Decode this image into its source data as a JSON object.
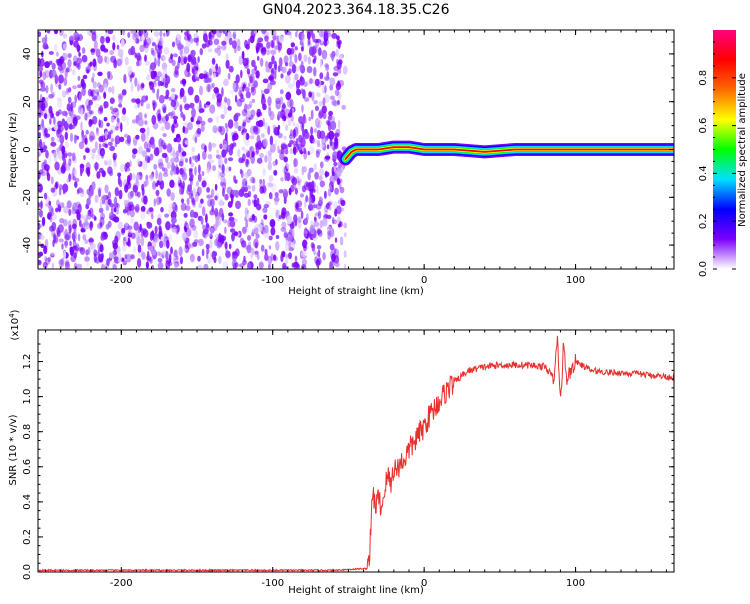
{
  "title": "GN04.2023.364.18.35.C26",
  "chart_data": [
    {
      "type": "heatmap",
      "title": "GN04.2023.364.18.35.C26",
      "xlabel": "Height of straight line (km)",
      "ylabel": "Frequency (Hz)",
      "xlim": [
        -255,
        165
      ],
      "ylim": [
        -50,
        50
      ],
      "xticks": [
        -200,
        -100,
        0,
        100
      ],
      "yticks": [
        -40,
        -20,
        0,
        20,
        40
      ],
      "noise_region_x": [
        -255,
        -52
      ],
      "signal_trace": {
        "x": [
          -52,
          -48,
          -45,
          -40,
          -30,
          -20,
          -10,
          0,
          20,
          40,
          60,
          80,
          100,
          120,
          140,
          165
        ],
        "y": [
          -4,
          -1,
          0,
          0,
          0,
          1,
          1,
          0,
          0,
          -1,
          0,
          0,
          0,
          0,
          0,
          0
        ]
      },
      "colorbar": {
        "label": "Normalized spectral amplitude",
        "range": [
          0.0,
          1.0
        ],
        "ticks": [
          "0.0",
          "0.2",
          "0.4",
          "0.6",
          "0.8"
        ],
        "colors": [
          "#ffffff",
          "#7a00ff",
          "#0000ff",
          "#00e0ff",
          "#00ff00",
          "#ffff00",
          "#ff6a00",
          "#ff0000",
          "#ff0080"
        ]
      }
    },
    {
      "type": "line",
      "xlabel": "Height of straight line (km)",
      "ylabel": "SNR (10 * v/v)",
      "scale_label": "(x10",
      "scale_exp": "4",
      "scale_close": ")",
      "xlim": [
        -255,
        165
      ],
      "ylim": [
        0.0,
        1.38
      ],
      "xticks": [
        -200,
        -100,
        0,
        100
      ],
      "yticks": [
        "0.0",
        "0.2",
        "0.4",
        "0.6",
        "0.8",
        "1.0",
        "1.2"
      ],
      "color": "#e8302e",
      "series": [
        {
          "x": [
            -255,
            -200,
            -150,
            -100,
            -60,
            -38,
            -36,
            -34,
            -32,
            -30,
            -28,
            -26,
            -24,
            -22,
            -20,
            -18,
            -16,
            -14,
            -12,
            -10,
            -8,
            -6,
            -4,
            -2,
            0,
            4,
            8,
            12,
            16,
            20,
            25,
            30,
            40,
            50,
            60,
            70,
            80,
            86,
            88,
            90,
            92,
            94,
            100,
            110,
            120,
            140,
            165
          ],
          "y": [
            0.01,
            0.01,
            0.01,
            0.01,
            0.01,
            0.02,
            0.1,
            0.45,
            0.38,
            0.42,
            0.36,
            0.48,
            0.55,
            0.5,
            0.6,
            0.58,
            0.62,
            0.63,
            0.66,
            0.7,
            0.72,
            0.75,
            0.78,
            0.8,
            0.83,
            0.9,
            0.95,
            1.0,
            1.05,
            1.08,
            1.12,
            1.15,
            1.17,
            1.18,
            1.18,
            1.18,
            1.17,
            1.1,
            1.35,
            0.95,
            1.3,
            1.1,
            1.2,
            1.15,
            1.14,
            1.13,
            1.11
          ]
        }
      ]
    }
  ]
}
